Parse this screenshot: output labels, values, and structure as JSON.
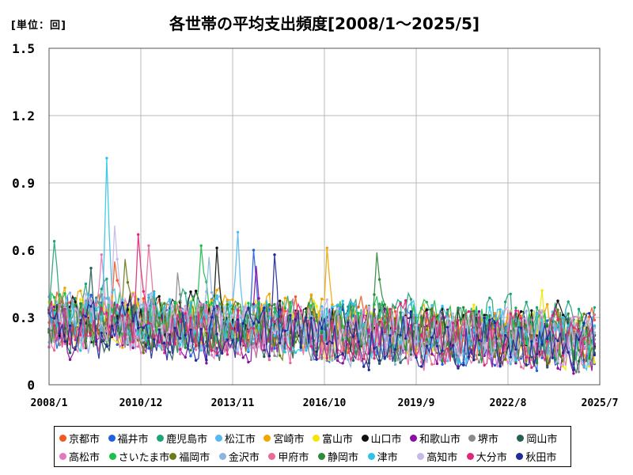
{
  "header": {
    "unit_label": "[単位：回]",
    "title": "各世帯の平均支出頻度[2008/1～2025/5]"
  },
  "chart_data": {
    "type": "line",
    "title": "各世帯の平均支出頻度[2008/1～2025/5]",
    "unit": "[単位：回]",
    "ylim": [
      0,
      1.5
    ],
    "y_ticks": [
      "0",
      "0.3",
      "0.6",
      "0.9",
      "1.2",
      "1.5"
    ],
    "x_ticks": [
      "2008/1",
      "2010/12",
      "2013/11",
      "2016/10",
      "2019/9",
      "2022/8",
      "2025/7"
    ],
    "x_range": [
      "2008/1",
      "2025/7"
    ],
    "grid": true,
    "legend_position": "bottom",
    "series_note": "monthly values 2008/1–2025/5 per city; values estimated from the plotted lines",
    "series": [
      {
        "name": "京都市",
        "color": "#f05a1e",
        "base": 0.3,
        "peak": {
          "x": "2010/2",
          "y": 0.55
        }
      },
      {
        "name": "福井市",
        "color": "#1f5fe0",
        "base": 0.27,
        "peak": {
          "x": "2014/7",
          "y": 0.6
        }
      },
      {
        "name": "鹿児島市",
        "color": "#1fa37a",
        "base": 0.33,
        "peak": {
          "x": "2008/3",
          "y": 0.64
        }
      },
      {
        "name": "松江市",
        "color": "#58b8f0",
        "base": 0.3,
        "peak": {
          "x": "2014/1",
          "y": 0.68
        }
      },
      {
        "name": "宮崎市",
        "color": "#f0a500",
        "base": 0.31,
        "peak": {
          "x": "2016/11",
          "y": 0.61
        }
      },
      {
        "name": "富山市",
        "color": "#f5e600",
        "base": 0.29,
        "peak": {
          "x": "2023/9",
          "y": 0.42
        }
      },
      {
        "name": "山口市",
        "color": "#111111",
        "base": 0.3,
        "peak": {
          "x": "2013/5",
          "y": 0.61
        }
      },
      {
        "name": "和歌山市",
        "color": "#8a0fa0",
        "base": 0.26,
        "peak": {
          "x": "2014/8",
          "y": 0.53
        }
      },
      {
        "name": "堺市",
        "color": "#8a8a8a",
        "base": 0.27,
        "peak": {
          "x": "2012/2",
          "y": 0.5
        }
      },
      {
        "name": "岡山市",
        "color": "#275e55",
        "base": 0.26,
        "peak": {
          "x": "2009/5",
          "y": 0.52
        }
      },
      {
        "name": "高松市",
        "color": "#e079c0",
        "base": 0.28,
        "peak": {
          "x": "2009/9",
          "y": 0.58
        }
      },
      {
        "name": "さいたま市",
        "color": "#1bbf4a",
        "base": 0.3,
        "peak": {
          "x": "2012/11",
          "y": 0.62
        }
      },
      {
        "name": "福岡市",
        "color": "#6b7a1a",
        "base": 0.26,
        "peak": {
          "x": "2010/6",
          "y": 0.56
        }
      },
      {
        "name": "金沢市",
        "color": "#8fb3e0",
        "base": 0.27,
        "peak": {
          "x": "2013/2",
          "y": 0.57
        }
      },
      {
        "name": "甲府市",
        "color": "#e56b9b",
        "base": 0.26,
        "peak": {
          "x": "2011/3",
          "y": 0.62
        }
      },
      {
        "name": "静岡市",
        "color": "#2e8b3a",
        "base": 0.28,
        "peak": {
          "x": "2018/6",
          "y": 0.59
        }
      },
      {
        "name": "津市",
        "color": "#2ec4e6",
        "base": 0.29,
        "peak": {
          "x": "2009/11",
          "y": 1.01
        }
      },
      {
        "name": "高知市",
        "color": "#c7b8e8",
        "base": 0.28,
        "peak": {
          "x": "2010/2",
          "y": 0.71
        }
      },
      {
        "name": "大分市",
        "color": "#e0267a",
        "base": 0.28,
        "peak": {
          "x": "2010/11",
          "y": 0.67
        }
      },
      {
        "name": "秋田市",
        "color": "#222a9a",
        "base": 0.25,
        "peak": {
          "x": "2015/3",
          "y": 0.58
        }
      }
    ]
  },
  "legend": {
    "rows": [
      [
        "京都市",
        "福井市",
        "鹿児島市",
        "松江市",
        "宮崎市",
        "富山市",
        "山口市",
        "和歌山市",
        "堺市",
        "岡山市"
      ],
      [
        "高松市",
        "さいたま市",
        "福岡市",
        "金沢市",
        "甲府市",
        "静岡市",
        "津市",
        "高知市",
        "大分市",
        "秋田市"
      ]
    ]
  }
}
